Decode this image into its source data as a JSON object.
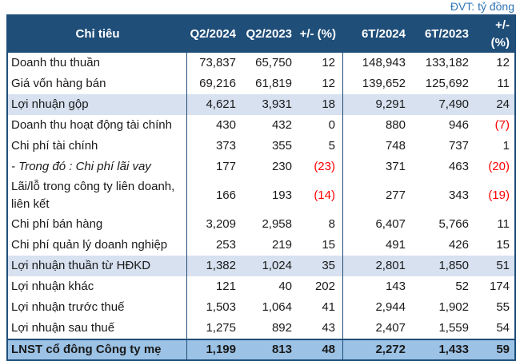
{
  "unit_label": "ĐVT: tỷ đồng",
  "colors": {
    "header_bg": "#1f4e79",
    "header_text": "#ffffff",
    "highlight_row_bg": "#d7e1f0",
    "total_row_bg": "#9cc2e5",
    "border": "#1f4e79",
    "negative_value": "#ff0000",
    "unit_label_text": "#2e75b6",
    "body_text": "#1a1a1a"
  },
  "chart_data": {
    "type": "table",
    "title": "",
    "unit": "ĐVT: tỷ đồng",
    "columns": [
      "Chỉ tiêu",
      "Q2/2024",
      "Q2/2023",
      "+/- (%)",
      "6T/2024",
      "6T/2023",
      "+/- (%)"
    ],
    "rows": [
      {
        "label": "Doanh thu thuần",
        "values": [
          "73,837",
          "65,750",
          "12",
          "148,943",
          "133,182",
          "12"
        ],
        "style": "normal"
      },
      {
        "label": "Giá vốn hàng bán",
        "values": [
          "69,216",
          "61,819",
          "12",
          "139,652",
          "125,692",
          "11"
        ],
        "style": "normal"
      },
      {
        "label": "Lợi nhuận gộp",
        "values": [
          "4,621",
          "3,931",
          "18",
          "9,291",
          "7,490",
          "24"
        ],
        "style": "hl"
      },
      {
        "label": "Doanh thu hoạt động tài chính",
        "values": [
          "430",
          "432",
          "0",
          "880",
          "946",
          "(7)"
        ],
        "style": "normal"
      },
      {
        "label": "Chi phí tài chính",
        "values": [
          "373",
          "355",
          "5",
          "748",
          "737",
          "1"
        ],
        "style": "normal"
      },
      {
        "label": "- Trong đó : Chi phí lãi vay",
        "values": [
          "177",
          "230",
          "(23)",
          "371",
          "463",
          "(20)"
        ],
        "style": "italic"
      },
      {
        "label": "Lãi/lỗ trong công ty liên doanh, liên kết",
        "values": [
          "166",
          "193",
          "(14)",
          "277",
          "343",
          "(19)"
        ],
        "style": "normal"
      },
      {
        "label": "Chi phí bán hàng",
        "values": [
          "3,209",
          "2,958",
          "8",
          "6,407",
          "5,766",
          "11"
        ],
        "style": "normal"
      },
      {
        "label": "Chi phí quản lý doanh nghiệp",
        "values": [
          "253",
          "219",
          "15",
          "491",
          "426",
          "15"
        ],
        "style": "normal"
      },
      {
        "label": "Lợi nhuận thuần từ HĐKD",
        "values": [
          "1,382",
          "1,024",
          "35",
          "2,801",
          "1,850",
          "51"
        ],
        "style": "hl"
      },
      {
        "label": "Lợi nhuận khác",
        "values": [
          "121",
          "40",
          "202",
          "143",
          "52",
          "174"
        ],
        "style": "normal"
      },
      {
        "label": "Lợi nhuận trước thuế",
        "values": [
          "1,503",
          "1,064",
          "41",
          "2,944",
          "1,902",
          "55"
        ],
        "style": "normal"
      },
      {
        "label": "Lợi nhuận sau thuế",
        "values": [
          "1,275",
          "892",
          "43",
          "2,407",
          "1,559",
          "54"
        ],
        "style": "normal"
      },
      {
        "label": "LNST cổ đông Công ty mẹ",
        "values": [
          "1,199",
          "813",
          "48",
          "2,272",
          "1,433",
          "59"
        ],
        "style": "total"
      }
    ]
  }
}
